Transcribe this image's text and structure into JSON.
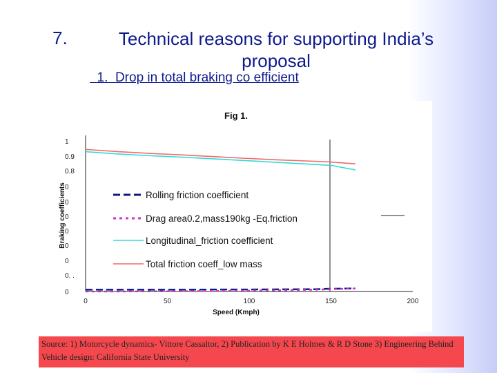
{
  "slide": {
    "number": "7.",
    "title": "Technical reasons for supporting India’s proposal",
    "subtitle": "  1.  Drop in total braking co efficient",
    "source": "Source: 1) Motorcycle dynamics- Vittore Cassaltor, 2) Publication by K E Holmes & R D Stone 3) Engineering Behind Vehicle design: California State University"
  },
  "chart_data": {
    "type": "line",
    "title": "Fig 1.",
    "xlabel": "Speed (Kmph)",
    "ylabel": "Braking coefficients",
    "x_ticks": [
      0,
      50,
      100,
      150,
      200
    ],
    "y_tick_labels": [
      "1",
      "0.9",
      "0.8",
      "0",
      "0",
      "0",
      "0",
      "0",
      "0",
      "0. .",
      "0"
    ],
    "xlim": [
      0,
      200
    ],
    "ylim": [
      0,
      1
    ],
    "grid": false,
    "legend_position": "center",
    "series": [
      {
        "name": "Rolling friction coefficient",
        "color": "#0d1a80",
        "dash": "long-dash",
        "x": [
          0,
          20,
          40,
          60,
          80,
          100,
          120,
          140,
          150,
          165
        ],
        "y": [
          0.012,
          0.012,
          0.012,
          0.012,
          0.013,
          0.013,
          0.014,
          0.015,
          0.018,
          0.02
        ]
      },
      {
        "name": "Drag area0.2,mass190kg -Eq.friction",
        "color": "#cc33cc",
        "dash": "short-dash",
        "x": [
          0,
          20,
          40,
          60,
          80,
          100,
          120,
          140,
          150,
          165
        ],
        "y": [
          0.0,
          0.0,
          0.001,
          0.002,
          0.004,
          0.006,
          0.008,
          0.012,
          0.015,
          0.02
        ]
      },
      {
        "name": "Longitudinal_friction coefficient",
        "color": "#33d9d9",
        "dash": "solid",
        "x": [
          0,
          20,
          40,
          60,
          80,
          100,
          120,
          140,
          150,
          165
        ],
        "y": [
          0.92,
          0.905,
          0.893,
          0.883,
          0.872,
          0.86,
          0.848,
          0.836,
          0.83,
          0.8
        ]
      },
      {
        "name": "Total friction coeff_low mass",
        "color": "#f06a6a",
        "dash": "solid",
        "x": [
          0,
          20,
          40,
          60,
          80,
          100,
          120,
          140,
          150,
          165
        ],
        "y": [
          0.935,
          0.92,
          0.908,
          0.898,
          0.887,
          0.875,
          0.865,
          0.857,
          0.852,
          0.84
        ]
      }
    ]
  }
}
